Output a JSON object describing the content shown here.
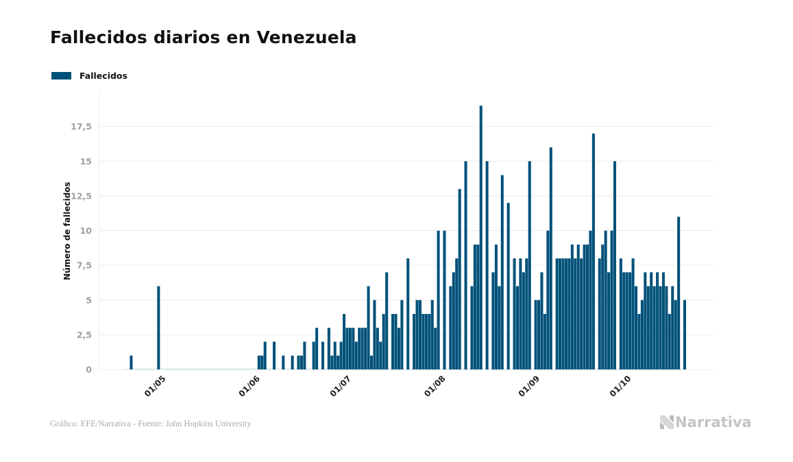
{
  "title": "Fallecidos diarios en Venezuela",
  "footer": "Gráfico: EFE/Narrativa - Fuente: John Hopkins University",
  "brand": {
    "name": "Narrativa",
    "icon": "narrativa-n-logo-icon"
  },
  "colors": {
    "bar": "#005179",
    "baseline": "#cfe1ea",
    "grid": "#ebebeb",
    "brand": "#c4c4c4"
  },
  "chart_data": {
    "type": "bar",
    "title": "Fallecidos diarios en Venezuela",
    "xlabel": "",
    "ylabel": "Número de fallecidos",
    "ylim": [
      0,
      20
    ],
    "yticks": [
      0,
      2.5,
      5,
      7.5,
      10,
      12.5,
      15,
      17.5
    ],
    "ytick_labels": [
      "0",
      "2,5",
      "5",
      "7,5",
      "10",
      "12,5",
      "15",
      "17,5"
    ],
    "grid": true,
    "legend": {
      "position": "top-left",
      "entries": [
        "Fallecidos"
      ]
    },
    "x_start_date": "2020-04-21",
    "x_end_date": "2020-10-21",
    "xtick_labels": [
      "01/05",
      "01/06",
      "01/07",
      "01/08",
      "01/09",
      "01/10"
    ],
    "xtick_dates": [
      "2020-05-01",
      "2020-06-01",
      "2020-07-01",
      "2020-08-01",
      "2020-09-01",
      "2020-10-01"
    ],
    "series": [
      {
        "name": "Fallecidos",
        "values": [
          0,
          1,
          0,
          0,
          0,
          0,
          0,
          0,
          0,
          0,
          6,
          0,
          0,
          0,
          0,
          0,
          0,
          0,
          0,
          0,
          0,
          0,
          0,
          0,
          0,
          0,
          0,
          0,
          0,
          0,
          0,
          0,
          0,
          0,
          0,
          0,
          0,
          0,
          0,
          0,
          0,
          0,
          0,
          1,
          1,
          2,
          0,
          0,
          2,
          0,
          0,
          1,
          0,
          0,
          1,
          0,
          1,
          1,
          2,
          0,
          0,
          2,
          3,
          0,
          2,
          0,
          3,
          1,
          2,
          1,
          2,
          4,
          3,
          3,
          3,
          2,
          3,
          3,
          3,
          6,
          1,
          5,
          3,
          2,
          4,
          7,
          0,
          4,
          4,
          3,
          5,
          0,
          8,
          0,
          4,
          5,
          5,
          4,
          4,
          4,
          5,
          3,
          10,
          0,
          10,
          0,
          6,
          7,
          8,
          13,
          0,
          15,
          0,
          6,
          9,
          9,
          19,
          0,
          15,
          0,
          7,
          9,
          6,
          14,
          0,
          12,
          0,
          8,
          6,
          8,
          7,
          8,
          15,
          0,
          5,
          5,
          7,
          4,
          10,
          16,
          0,
          8,
          8,
          8,
          8,
          8,
          9,
          8,
          9,
          8,
          9,
          9,
          10,
          17,
          0,
          8,
          9,
          10,
          7,
          10,
          15,
          0,
          8,
          7,
          7,
          7,
          8,
          6,
          4,
          5,
          7,
          6,
          7,
          6,
          7,
          6,
          7,
          6,
          4,
          6,
          5,
          11,
          0,
          5
        ]
      }
    ]
  }
}
